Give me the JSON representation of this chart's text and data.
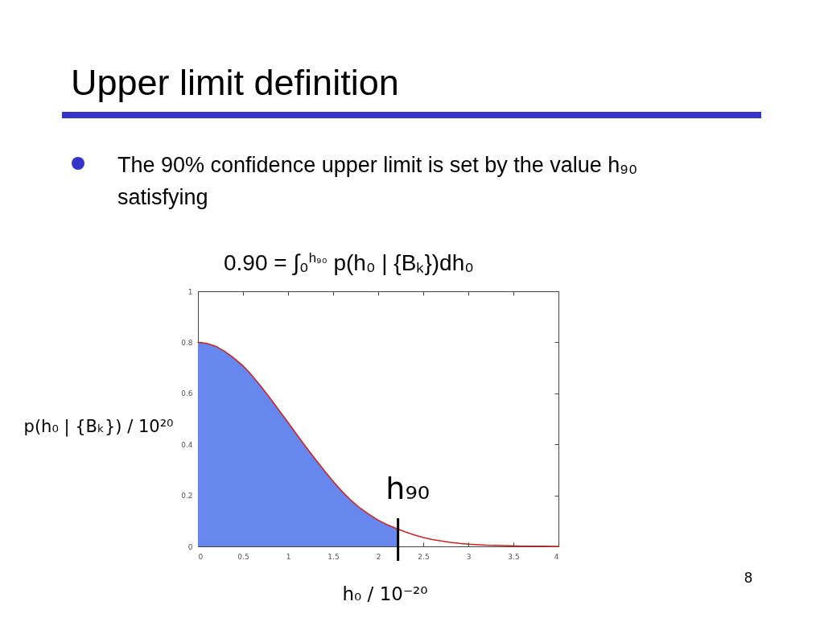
{
  "chart_data": {
    "type": "line",
    "title": "Upper limit definition",
    "xlabel": "h₀ / 10⁻²⁰",
    "ylabel": "p(h₀ | {Bₖ}) / 10²⁰",
    "annotations": [
      "The 90% confidence upper limit is set by the value h₉₀ satisfying",
      "0.90 = ∫₀$^{h₉₀}$ p(h₀ | {Bₖ})dh₀",
      "8"
    ],
    "series": [
      {
        "type": "area",
        "color": "#6688ee",
        "x": [
          0,
          0.1,
          0.2,
          0.3,
          0.4,
          0.5,
          0.6,
          0.7,
          0.8,
          0.9,
          1,
          1.1,
          1.2,
          1.3,
          1.4,
          1.5,
          1.6,
          1.7,
          1.8,
          1.9,
          2,
          2.1,
          2.2,
          2.22
        ],
        "values": [
          0.8,
          0.796,
          0.784,
          0.764,
          0.738,
          0.708,
          0.67,
          0.627,
          0.581,
          0.533,
          0.486,
          0.437,
          0.389,
          0.343,
          0.298,
          0.255,
          0.215,
          0.18,
          0.15,
          0.125,
          0.103,
          0.085,
          0.07,
          0.068
        ]
      },
      {
        "type": "line",
        "color": "#cc2222",
        "x": [
          0,
          0.1,
          0.2,
          0.3,
          0.4,
          0.5,
          0.6,
          0.7,
          0.8,
          0.9,
          1,
          1.1,
          1.2,
          1.3,
          1.4,
          1.5,
          1.6,
          1.7,
          1.8,
          1.9,
          2,
          2.1,
          2.2,
          2.3,
          2.4,
          2.5,
          2.6,
          2.7,
          2.8,
          2.9,
          3,
          3.2,
          3.4,
          3.6,
          3.8,
          4
        ],
        "values": [
          0.8,
          0.796,
          0.784,
          0.764,
          0.738,
          0.708,
          0.67,
          0.627,
          0.581,
          0.533,
          0.486,
          0.437,
          0.389,
          0.343,
          0.298,
          0.255,
          0.215,
          0.18,
          0.15,
          0.125,
          0.103,
          0.085,
          0.07,
          0.057,
          0.045,
          0.035,
          0.027,
          0.021,
          0.016,
          0.012,
          0.009,
          0.005,
          0.003,
          0.001,
          0.001,
          0
        ]
      }
    ],
    "xlim": [
      0,
      4
    ],
    "xticks": [
      0,
      0.5,
      1,
      1.5,
      2,
      2.5,
      3,
      3.5,
      4
    ],
    "ylim": [
      0,
      1
    ],
    "yticks": [
      0,
      0.2,
      0.4,
      0.6,
      0.8,
      1
    ],
    "ref_lines": [
      {
        "axis": "x",
        "value": 2.22,
        "label": "h₉₀",
        "color": "#000000"
      }
    ]
  }
}
